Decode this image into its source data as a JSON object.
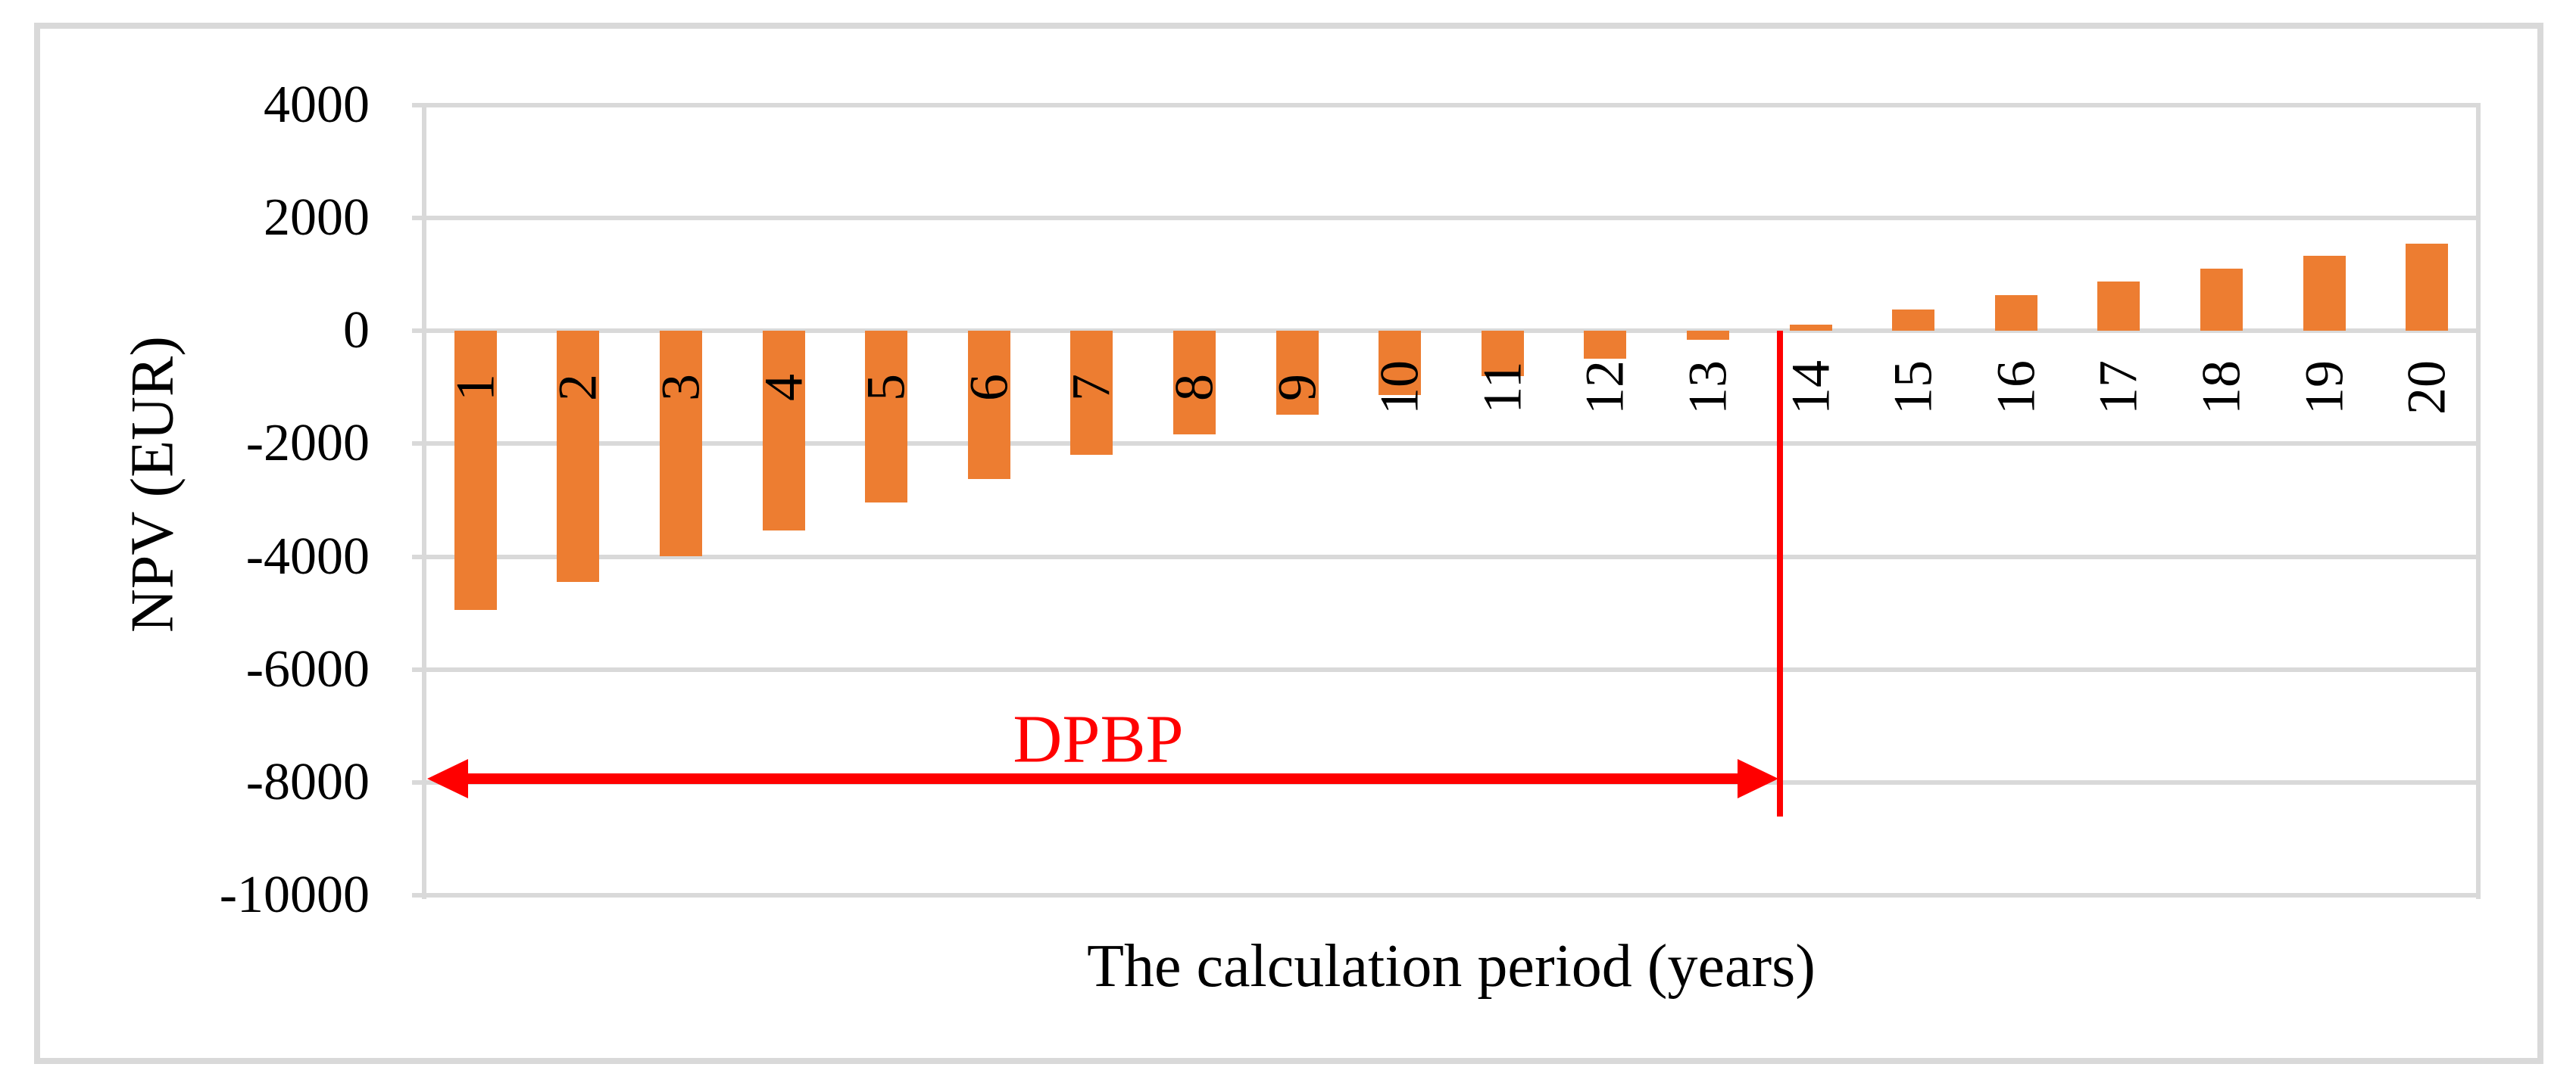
{
  "chart_data": {
    "type": "bar",
    "title": "",
    "xlabel": "The calculation period (years)",
    "ylabel": "NPV (EUR)",
    "categories": [
      "1",
      "2",
      "3",
      "4",
      "5",
      "6",
      "7",
      "8",
      "9",
      "10",
      "11",
      "12",
      "13",
      "14",
      "15",
      "16",
      "17",
      "18",
      "19",
      "20"
    ],
    "values": [
      -4950,
      -4450,
      -3990,
      -3530,
      -3040,
      -2620,
      -2200,
      -1830,
      -1480,
      -1140,
      -800,
      -490,
      -160,
      110,
      380,
      630,
      880,
      1100,
      1330,
      1540
    ],
    "ylim": [
      -10000,
      4000
    ],
    "ytick_values": [
      4000,
      2000,
      0,
      -2000,
      -4000,
      -6000,
      -8000,
      -10000
    ],
    "ytick_labels": [
      "4000",
      "2000",
      "0",
      "-2000",
      "-4000",
      "-6000",
      "-8000",
      "-10000"
    ],
    "grid": "horizontal",
    "legend_position": "none",
    "colors": {
      "bar": "#ED7D31",
      "gridline": "#D9D9D9",
      "annotation": "#FF0000",
      "text": "#000000",
      "background": "#FFFFFF",
      "frame": "#D9D9D9"
    },
    "annotation": {
      "label": "DPBP",
      "arrow_y_value": -7930,
      "arrow_start_year": 0,
      "arrow_end_year": 13.2,
      "vline_year": 13.2,
      "vline_top_value": 0,
      "vline_bottom_value": -8600
    }
  }
}
